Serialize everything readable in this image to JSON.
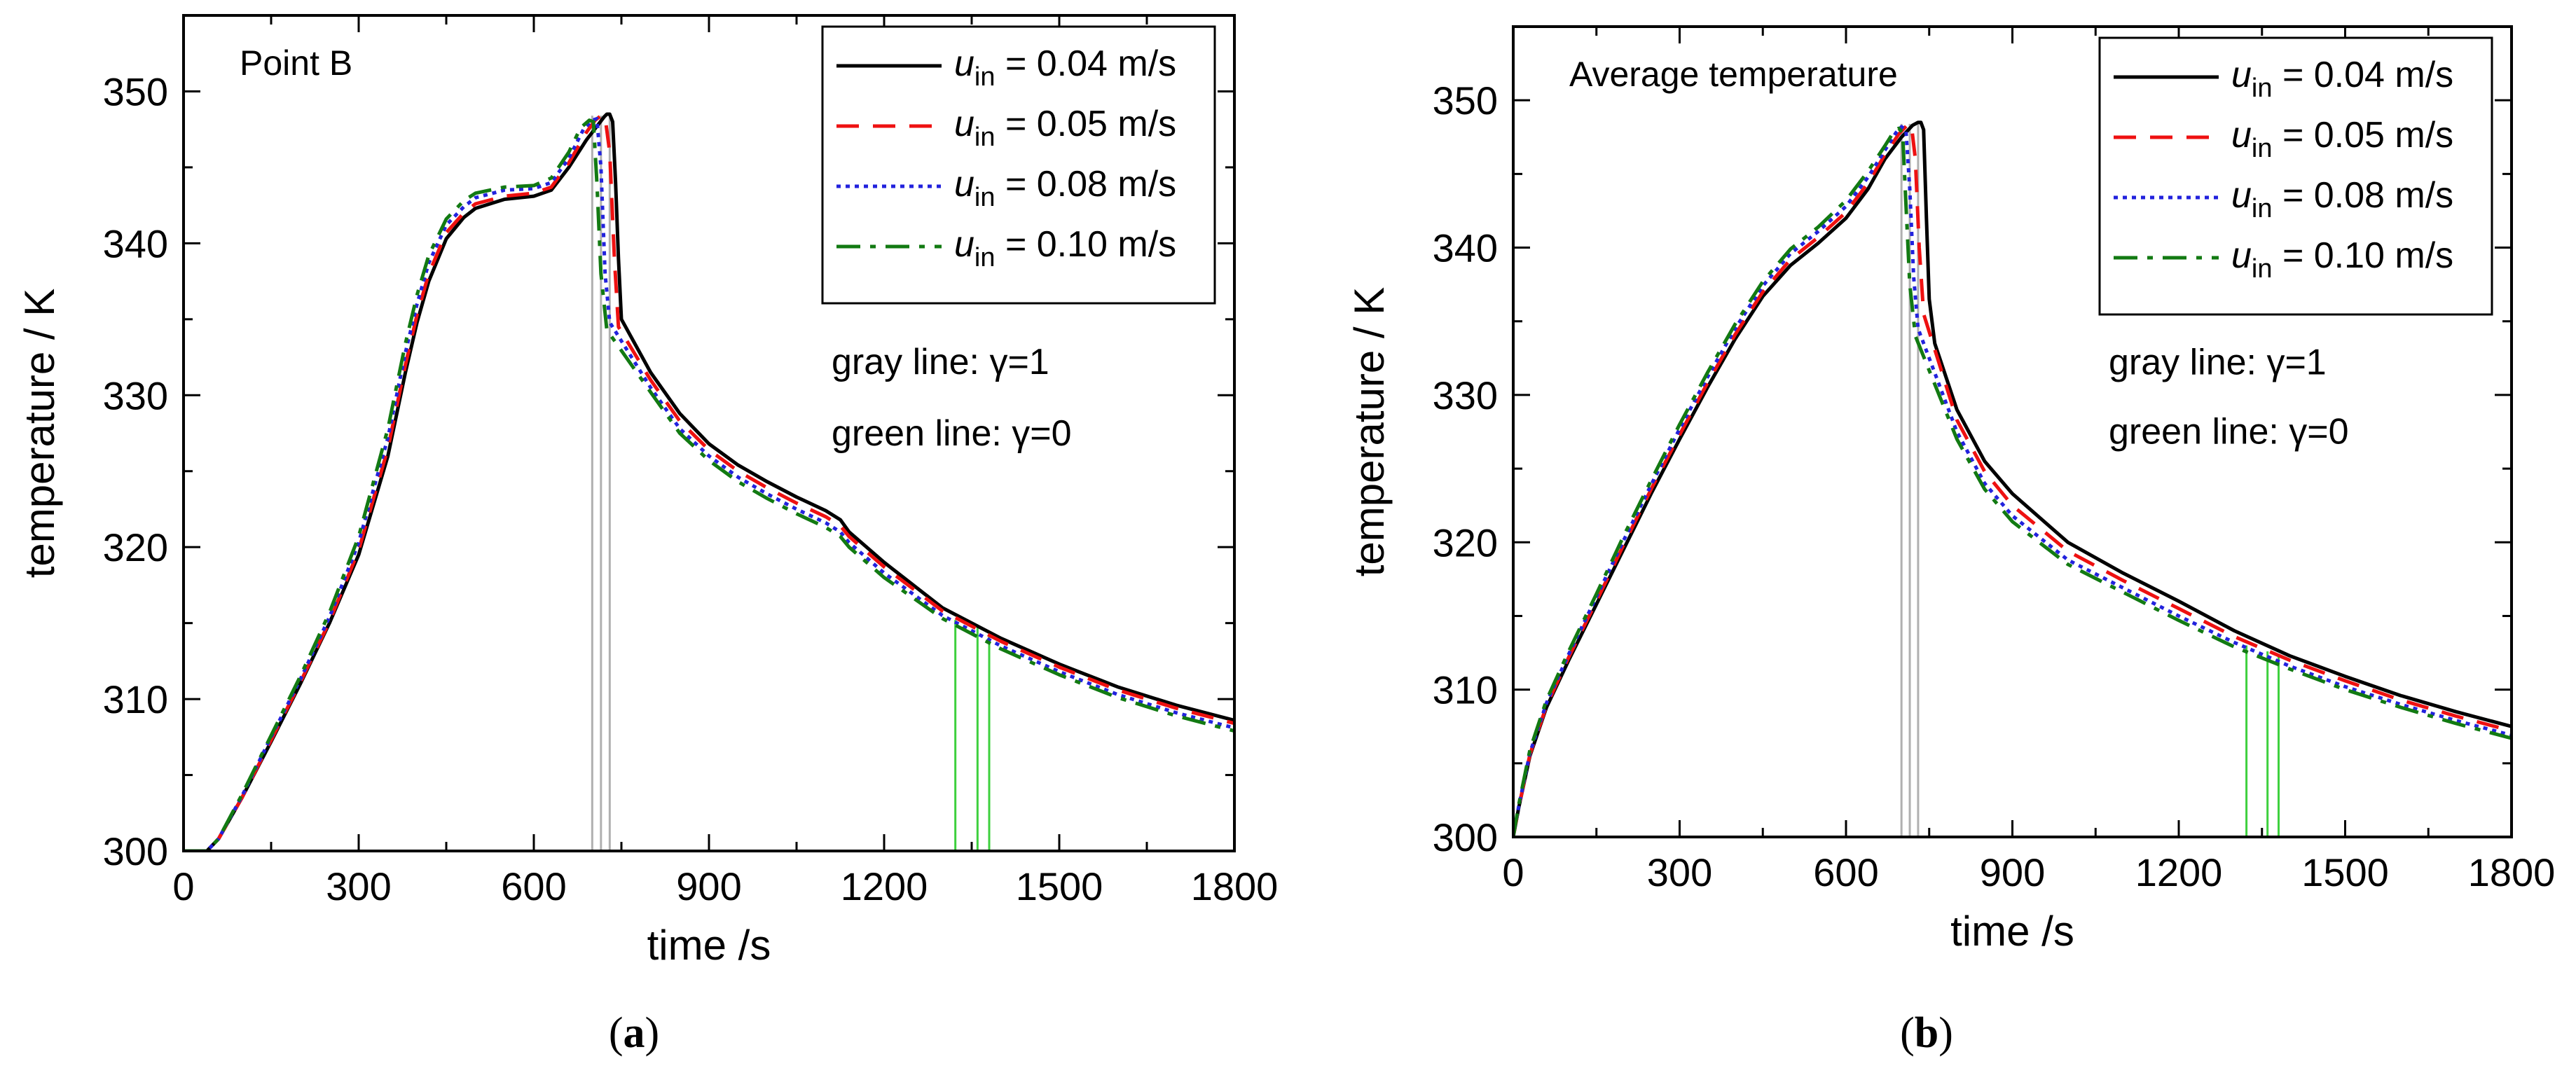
{
  "figure": {
    "panels": [
      {
        "id": "a",
        "caption_letter": "a",
        "caption_text": "(a)",
        "corner_label": "Point B",
        "annotation_gray": "gray   line: γ=1",
        "annotation_green": "green line: γ=0",
        "colors": {
          "gray_marker": "#b0b0b0",
          "green_marker": "#3ed03e"
        }
      },
      {
        "id": "b",
        "caption_letter": "b",
        "caption_text": "(b)",
        "corner_label": "Average temperature",
        "annotation_gray": "gray   line: γ=1",
        "annotation_green": "green line: γ=0",
        "colors": {
          "gray_marker": "#b0b0b0",
          "green_marker": "#3ed03e"
        }
      }
    ]
  },
  "chart_data": [
    {
      "type": "line",
      "title": "Point B",
      "xlabel": "time /s",
      "ylabel": "temperature / K",
      "xlim": [
        0,
        1800
      ],
      "ylim": [
        300,
        355
      ],
      "xticks": [
        0,
        300,
        600,
        900,
        1200,
        1500,
        1800
      ],
      "yticks": [
        300,
        310,
        320,
        330,
        340,
        350
      ],
      "grid": false,
      "legend_position": "top-right",
      "gray_lines_x": [
        700,
        715,
        730
      ],
      "green_lines_x": [
        1322,
        1360,
        1380
      ],
      "green_lines_top": [
        315.2,
        314.8,
        314.5
      ],
      "series": [
        {
          "name": "u_in = 0.04 m/s",
          "legend_var": "u",
          "legend_sub": "in",
          "legend_rest": " = 0.04 m/s",
          "color": "#000000",
          "dash": "solid",
          "x": [
            0,
            40,
            60,
            100,
            150,
            200,
            250,
            300,
            350,
            380,
            400,
            420,
            450,
            480,
            500,
            550,
            600,
            630,
            660,
            690,
            710,
            720,
            725,
            730,
            735,
            740,
            745,
            750,
            800,
            850,
            900,
            950,
            1000,
            1050,
            1100,
            1125,
            1140,
            1200,
            1300,
            1400,
            1500,
            1600,
            1700,
            1800
          ],
          "y": [
            300,
            300,
            300.8,
            303.5,
            307.2,
            311.0,
            315.0,
            319.5,
            326.0,
            331.5,
            334.8,
            337.5,
            340.3,
            341.7,
            342.3,
            342.9,
            343.1,
            343.5,
            345.0,
            346.8,
            347.8,
            348.3,
            348.5,
            348.5,
            348.0,
            344.0,
            339.0,
            335.0,
            331.5,
            328.8,
            326.8,
            325.4,
            324.3,
            323.3,
            322.4,
            321.8,
            321.0,
            319.0,
            316.0,
            314.0,
            312.3,
            310.8,
            309.6,
            308.6
          ]
        },
        {
          "name": "u_in = 0.05 m/s",
          "legend_var": "u",
          "legend_sub": "in",
          "legend_rest": " = 0.05 m/s",
          "color": "#ee1111",
          "dash": "dashed",
          "x": [
            0,
            40,
            60,
            100,
            150,
            200,
            250,
            300,
            350,
            380,
            400,
            420,
            450,
            480,
            500,
            550,
            600,
            630,
            660,
            690,
            705,
            715,
            722,
            730,
            738,
            745,
            800,
            850,
            900,
            950,
            1000,
            1050,
            1100,
            1125,
            1140,
            1200,
            1300,
            1400,
            1500,
            1600,
            1700,
            1800
          ],
          "y": [
            300,
            300,
            300.8,
            303.5,
            307.3,
            311.1,
            315.1,
            319.8,
            326.5,
            332.0,
            335.3,
            338.0,
            340.7,
            342.0,
            342.6,
            343.1,
            343.3,
            343.7,
            345.3,
            347.3,
            348.1,
            348.4,
            348.3,
            346.0,
            339.0,
            334.5,
            331.0,
            328.3,
            326.4,
            325.0,
            323.9,
            322.9,
            322.0,
            321.4,
            320.7,
            318.7,
            315.8,
            313.8,
            312.1,
            310.6,
            309.4,
            308.4
          ]
        },
        {
          "name": "u_in = 0.08 m/s",
          "legend_var": "u",
          "legend_sub": "in",
          "legend_rest": " = 0.08 m/s",
          "color": "#2222dd",
          "dash": "dotted",
          "x": [
            0,
            40,
            60,
            100,
            150,
            200,
            250,
            300,
            350,
            380,
            400,
            420,
            450,
            480,
            500,
            550,
            600,
            630,
            660,
            685,
            700,
            708,
            715,
            722,
            730,
            800,
            850,
            900,
            950,
            1000,
            1050,
            1100,
            1125,
            1140,
            1200,
            1300,
            1400,
            1500,
            1600,
            1700,
            1800
          ],
          "y": [
            300,
            300,
            300.8,
            303.6,
            307.5,
            311.3,
            315.4,
            320.3,
            327.2,
            332.8,
            336.0,
            338.7,
            341.2,
            342.4,
            343.0,
            343.5,
            343.6,
            344.0,
            345.6,
            347.5,
            348.1,
            348.2,
            345.0,
            338.0,
            334.8,
            330.5,
            327.8,
            326.0,
            324.6,
            323.5,
            322.5,
            321.6,
            321.0,
            320.3,
            318.3,
            315.5,
            313.5,
            311.8,
            310.3,
            309.1,
            308.1
          ]
        },
        {
          "name": "u_in = 0.10 m/s",
          "legend_var": "u",
          "legend_sub": "in",
          "legend_rest": " = 0.10 m/s",
          "color": "#127a12",
          "dash": "dashdot",
          "x": [
            0,
            40,
            60,
            100,
            150,
            200,
            250,
            300,
            350,
            380,
            400,
            420,
            450,
            480,
            500,
            550,
            600,
            630,
            660,
            680,
            695,
            702,
            708,
            715,
            725,
            800,
            850,
            900,
            950,
            1000,
            1050,
            1100,
            1125,
            1140,
            1200,
            1300,
            1400,
            1500,
            1600,
            1700,
            1800
          ],
          "y": [
            300,
            300,
            300.8,
            303.7,
            307.6,
            311.5,
            315.7,
            320.7,
            327.8,
            333.4,
            336.6,
            339.2,
            341.6,
            342.8,
            343.3,
            343.7,
            343.8,
            344.3,
            346.0,
            347.6,
            348.1,
            348.0,
            344.0,
            338.0,
            334.3,
            330.2,
            327.5,
            325.7,
            324.3,
            323.2,
            322.2,
            321.3,
            320.7,
            320.0,
            318.0,
            315.3,
            313.3,
            311.6,
            310.1,
            308.9,
            307.9
          ]
        }
      ]
    },
    {
      "type": "line",
      "title": "Average temperature",
      "xlabel": "time /s",
      "ylabel": "temperature / K",
      "xlim": [
        0,
        1800
      ],
      "ylim": [
        300,
        355
      ],
      "xticks": [
        0,
        300,
        600,
        900,
        1200,
        1500,
        1800
      ],
      "yticks": [
        300,
        310,
        320,
        330,
        340,
        350
      ],
      "grid": false,
      "legend_position": "top-right",
      "gray_lines_x": [
        700,
        715,
        730
      ],
      "green_lines_x": [
        1322,
        1360,
        1380
      ],
      "green_lines_top": [
        313.0,
        312.6,
        312.4
      ],
      "series": [
        {
          "name": "u_in = 0.04 m/s",
          "legend_var": "u",
          "legend_sub": "in",
          "legend_rest": " = 0.04 m/s",
          "color": "#000000",
          "dash": "solid",
          "x": [
            0,
            10,
            30,
            60,
            100,
            150,
            200,
            250,
            300,
            350,
            400,
            450,
            500,
            550,
            600,
            640,
            670,
            700,
            720,
            730,
            735,
            740,
            745,
            750,
            760,
            800,
            850,
            900,
            1000,
            1100,
            1200,
            1300,
            1400,
            1500,
            1600,
            1700,
            1800
          ],
          "y": [
            300,
            302.0,
            305.5,
            308.8,
            312.0,
            315.8,
            319.6,
            323.4,
            327.0,
            330.5,
            333.8,
            336.7,
            338.8,
            340.3,
            342.0,
            344.0,
            346.0,
            347.5,
            348.3,
            348.5,
            348.5,
            348.0,
            342.0,
            336.5,
            333.5,
            329.0,
            325.5,
            323.3,
            320.0,
            317.9,
            316.0,
            314.0,
            312.3,
            310.9,
            309.6,
            308.5,
            307.5
          ]
        },
        {
          "name": "u_in = 0.05 m/s",
          "legend_var": "u",
          "legend_sub": "in",
          "legend_rest": " = 0.05 m/s",
          "color": "#ee1111",
          "dash": "dashed",
          "x": [
            0,
            10,
            30,
            60,
            100,
            150,
            200,
            250,
            300,
            350,
            400,
            450,
            500,
            550,
            600,
            640,
            670,
            695,
            710,
            718,
            725,
            732,
            740,
            800,
            850,
            900,
            1000,
            1100,
            1200,
            1300,
            1400,
            1500,
            1600,
            1700,
            1800
          ],
          "y": [
            300,
            302.0,
            305.6,
            308.9,
            312.2,
            316.0,
            319.9,
            323.7,
            327.3,
            330.8,
            334.1,
            337.0,
            339.2,
            340.7,
            342.4,
            344.4,
            346.3,
            347.7,
            348.3,
            348.3,
            346.0,
            340.0,
            335.5,
            328.3,
            324.8,
            322.5,
            319.4,
            317.4,
            315.5,
            313.6,
            312.0,
            310.6,
            309.3,
            308.2,
            307.2
          ]
        },
        {
          "name": "u_in = 0.08 m/s",
          "legend_var": "u",
          "legend_sub": "in",
          "legend_rest": " = 0.08 m/s",
          "color": "#2222dd",
          "dash": "dotted",
          "x": [
            0,
            10,
            30,
            60,
            100,
            150,
            200,
            250,
            300,
            350,
            400,
            450,
            500,
            550,
            600,
            640,
            670,
            690,
            700,
            708,
            715,
            722,
            730,
            800,
            850,
            900,
            1000,
            1100,
            1200,
            1300,
            1400,
            1500,
            1600,
            1700,
            1800
          ],
          "y": [
            300,
            302.1,
            305.7,
            309.1,
            312.4,
            316.3,
            320.2,
            324.0,
            327.7,
            331.2,
            334.5,
            337.4,
            339.6,
            341.1,
            342.8,
            344.8,
            346.6,
            347.8,
            348.2,
            348.0,
            344.0,
            338.0,
            334.5,
            327.5,
            324.0,
            321.8,
            318.8,
            316.9,
            315.0,
            313.2,
            311.6,
            310.2,
            309.0,
            307.9,
            306.9
          ]
        },
        {
          "name": "u_in = 0.10 m/s",
          "legend_var": "u",
          "legend_sub": "in",
          "legend_rest": " = 0.10 m/s",
          "color": "#127a12",
          "dash": "dashdot",
          "x": [
            0,
            10,
            30,
            60,
            100,
            150,
            200,
            250,
            300,
            350,
            400,
            450,
            500,
            550,
            600,
            640,
            670,
            685,
            695,
            702,
            708,
            715,
            725,
            800,
            850,
            900,
            1000,
            1100,
            1200,
            1300,
            1400,
            1500,
            1600,
            1700,
            1800
          ],
          "y": [
            300,
            302.2,
            305.9,
            309.3,
            312.6,
            316.5,
            320.5,
            324.3,
            328.0,
            331.5,
            334.8,
            337.7,
            339.9,
            341.4,
            343.2,
            345.2,
            346.9,
            347.8,
            348.1,
            347.8,
            343.0,
            337.5,
            334.0,
            327.0,
            323.6,
            321.4,
            318.5,
            316.6,
            314.7,
            312.9,
            311.4,
            310.0,
            308.8,
            307.7,
            306.7
          ]
        }
      ]
    }
  ]
}
